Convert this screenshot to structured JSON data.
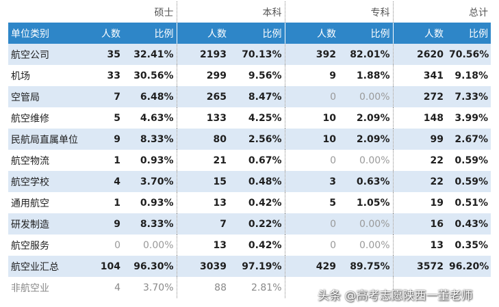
{
  "table": {
    "groups": [
      "硕士",
      "本科",
      "专科",
      "总计"
    ],
    "header": [
      "单位类别",
      "人数",
      "比例",
      "人数",
      "比例",
      "人数",
      "比例",
      "人数",
      "比例"
    ],
    "rows": [
      [
        "航空公司",
        "35",
        "32.41%",
        "2193",
        "70.13%",
        "392",
        "82.01%",
        "2620",
        "70.56%"
      ],
      [
        "机场",
        "33",
        "30.56%",
        "299",
        "9.56%",
        "9",
        "1.88%",
        "341",
        "9.18%"
      ],
      [
        "空管局",
        "7",
        "6.48%",
        "265",
        "8.47%",
        "0",
        "0.00%",
        "272",
        "7.33%"
      ],
      [
        "航空维修",
        "5",
        "4.63%",
        "133",
        "4.25%",
        "10",
        "2.09%",
        "148",
        "3.99%"
      ],
      [
        "民航局直属单位",
        "9",
        "8.33%",
        "80",
        "2.56%",
        "10",
        "2.09%",
        "99",
        "2.67%"
      ],
      [
        "航空物流",
        "1",
        "0.93%",
        "21",
        "0.67%",
        "0",
        "0.00%",
        "22",
        "0.59%"
      ],
      [
        "航空学校",
        "4",
        "3.70%",
        "15",
        "0.48%",
        "3",
        "0.63%",
        "22",
        "0.59%"
      ],
      [
        "通用航空",
        "1",
        "0.93%",
        "13",
        "0.42%",
        "5",
        "1.05%",
        "19",
        "0.51%"
      ],
      [
        "研发制造",
        "9",
        "8.33%",
        "7",
        "0.22%",
        "0",
        "0.00%",
        "16",
        "0.43%"
      ],
      [
        "航空服务",
        "0",
        "0.00%",
        "13",
        "0.42%",
        "0",
        "0.00%",
        "13",
        "0.35%"
      ],
      [
        "航空业汇总",
        "104",
        "96.30%",
        "3039",
        "97.19%",
        "429",
        "89.75%",
        "3572",
        "96.20%"
      ],
      [
        "非航空业",
        "4",
        "3.70%",
        "88",
        "2.81%",
        "",
        "",
        "",
        ""
      ]
    ]
  },
  "watermark": "头条 @高考志愿陕西一董老师"
}
